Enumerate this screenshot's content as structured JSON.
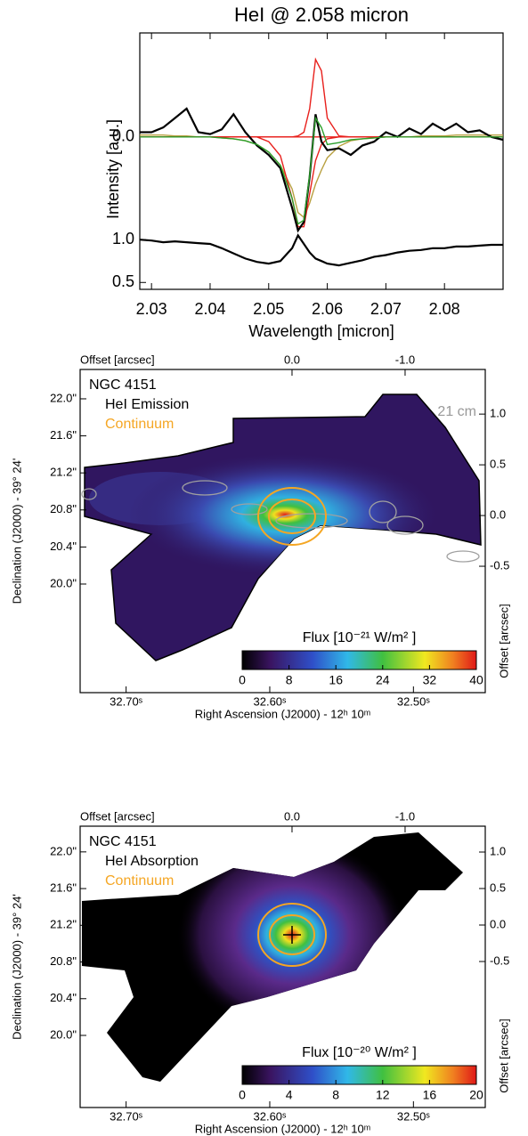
{
  "chart_data": [
    {
      "type": "line",
      "title": "HeI @ 2.058 micron",
      "xlabel": "Wavelength [micron]",
      "ylabel": "Intensity [a.u.]",
      "x": [
        2.028,
        2.03,
        2.032,
        2.034,
        2.036,
        2.038,
        2.04,
        2.042,
        2.044,
        2.046,
        2.048,
        2.05,
        2.052,
        2.054,
        2.055,
        2.056,
        2.057,
        2.058,
        2.059,
        2.06,
        2.062,
        2.064,
        2.066,
        2.068,
        2.07,
        2.072,
        2.074,
        2.076,
        2.078,
        2.08,
        2.082,
        2.084,
        2.086,
        2.088,
        2.09
      ],
      "xlim": [
        2.028,
        2.09
      ],
      "xticks": [
        2.03,
        2.04,
        2.05,
        2.06,
        2.07,
        2.08
      ],
      "ylim": [
        -1.0,
        1.1
      ],
      "yticks": [
        {
          "value": 0,
          "label": "0.0"
        }
      ],
      "series": [
        {
          "color": "#e8201c",
          "values": [
            0,
            0,
            0,
            0,
            0,
            0,
            0,
            0,
            0,
            0,
            0,
            0,
            0,
            0,
            0,
            0,
            0,
            0,
            0,
            0,
            0,
            0,
            0,
            0,
            0,
            0,
            0,
            0,
            0,
            0,
            0,
            0,
            0,
            0,
            0
          ]
        },
        {
          "color": "#b8a040",
          "values": [
            0.02,
            0.02,
            0.02,
            0.01,
            0.01,
            0,
            0,
            -0.01,
            -0.02,
            -0.04,
            -0.08,
            -0.16,
            -0.3,
            -0.55,
            -0.8,
            -0.85,
            -0.7,
            -0.5,
            -0.35,
            -0.22,
            -0.1,
            -0.04,
            -0.02,
            -0.01,
            0,
            0,
            0,
            0.01,
            0.01,
            0.01,
            0.02,
            0.02,
            0.02,
            0.02,
            0.02
          ]
        },
        {
          "color": "#e8201c",
          "values": [
            0,
            0,
            0,
            0,
            0,
            0,
            0,
            0,
            0,
            0,
            0,
            -0.05,
            -0.2,
            -0.65,
            -0.95,
            -0.95,
            -0.6,
            -0.25,
            -0.08,
            -0.02,
            0,
            0,
            0,
            0,
            0,
            0,
            0,
            0,
            0,
            0,
            0,
            0,
            0,
            0,
            0
          ]
        },
        {
          "color": "#e8201c",
          "values": [
            0,
            0,
            0,
            0,
            0,
            0,
            0,
            0,
            0,
            0,
            0,
            0,
            0,
            0,
            0.01,
            0.05,
            0.3,
            0.82,
            0.7,
            0.2,
            0.01,
            0,
            0,
            0,
            0,
            0,
            0,
            0,
            0,
            0,
            0,
            0,
            0,
            0,
            0
          ]
        },
        {
          "color": "#000000",
          "values": [
            0.05,
            0.05,
            0.1,
            0.2,
            0.3,
            0.05,
            0.03,
            0.08,
            0.24,
            0.05,
            -0.09,
            -0.19,
            -0.33,
            -0.75,
            -0.99,
            -0.9,
            -0.42,
            0.24,
            -0.05,
            -0.14,
            -0.12,
            -0.19,
            -0.09,
            -0.05,
            0.05,
            0,
            0.09,
            0.03,
            0.14,
            0.07,
            0.14,
            0.05,
            0.07,
            0,
            -0.03
          ]
        },
        {
          "color": "#2ca02c",
          "values": [
            0,
            0,
            0,
            0,
            0,
            0,
            0,
            -0.01,
            -0.02,
            -0.04,
            -0.08,
            -0.16,
            -0.3,
            -0.65,
            -0.92,
            -0.88,
            -0.4,
            0.2,
            0.1,
            -0.08,
            -0.06,
            -0.03,
            -0.02,
            -0.01,
            0,
            0,
            0,
            0,
            0,
            0,
            0,
            0,
            0,
            0,
            0
          ]
        }
      ]
    },
    {
      "type": "line",
      "x": [
        2.028,
        2.03,
        2.032,
        2.034,
        2.036,
        2.038,
        2.04,
        2.042,
        2.044,
        2.046,
        2.048,
        2.05,
        2.052,
        2.054,
        2.055,
        2.056,
        2.057,
        2.058,
        2.059,
        2.06,
        2.062,
        2.064,
        2.066,
        2.068,
        2.07,
        2.072,
        2.074,
        2.076,
        2.078,
        2.08,
        2.082,
        2.084,
        2.086,
        2.088,
        2.09
      ],
      "xlim": [
        2.028,
        2.09
      ],
      "ylim": [
        0.43,
        1.2
      ],
      "yticks": [
        {
          "value": 1,
          "label": "1.0"
        },
        0.5
      ],
      "series": [
        {
          "color": "#000000",
          "values": [
            1.0,
            0.99,
            0.97,
            0.98,
            0.97,
            0.96,
            0.95,
            0.9,
            0.84,
            0.78,
            0.74,
            0.72,
            0.75,
            0.9,
            1.05,
            0.95,
            0.85,
            0.78,
            0.75,
            0.72,
            0.7,
            0.73,
            0.76,
            0.8,
            0.82,
            0.85,
            0.87,
            0.88,
            0.9,
            0.9,
            0.92,
            0.92,
            0.93,
            0.94,
            0.94
          ]
        }
      ]
    },
    {
      "type": "image",
      "title": "NGC 4151",
      "labels": [
        {
          "text": "HeI Emission",
          "color": "#000000"
        },
        {
          "text": "Continuum",
          "color": "#f5a623"
        }
      ],
      "annotation": {
        "text": "21 cm",
        "color": "#999999"
      },
      "xlabel": "Right Ascension (J2000) - 12ʰ 10ᵐ",
      "ylabel": "Declination (J2000) - 39° 24'",
      "x2label": "Offset [arcsec]",
      "y2label": "Offset [arcsec]",
      "xlim": [
        32.732,
        32.45
      ],
      "xticks": [
        {
          "value": 32.7,
          "label": "32.70ˢ"
        },
        {
          "value": 32.6,
          "label": "32.60ˢ"
        },
        {
          "value": 32.5,
          "label": "32.50ˢ"
        }
      ],
      "x2lim": [
        1.874,
        -1.709
      ],
      "x2ticks": [
        {
          "value": 0,
          "label": "0.0"
        },
        {
          "value": -1,
          "label": "-1.0"
        }
      ],
      "ylim": [
        22.317,
        18.827
      ],
      "yticks": [
        {
          "value": 22,
          "label": "22.0\""
        },
        {
          "value": 21.6,
          "label": "21.6\""
        },
        {
          "value": 21.2,
          "label": "21.2\""
        },
        {
          "value": 20.8,
          "label": "20.8\""
        },
        {
          "value": 20.4,
          "label": "20.4\""
        },
        {
          "value": 20,
          "label": "20.0\""
        }
      ],
      "y2lim": [
        1.44,
        -1.746
      ],
      "y2ticks": [
        {
          "value": 1,
          "label": "1.0"
        },
        0.5,
        {
          "value": 0,
          "label": "0.0"
        },
        -0.5
      ],
      "colorbar": {
        "title": "Flux [10⁻²¹ W/m² ]",
        "lim": [
          0,
          40
        ],
        "ticks": [
          0,
          8,
          16,
          24,
          32,
          40
        ]
      }
    },
    {
      "type": "image",
      "title": "NGC 4151",
      "labels": [
        {
          "text": "HeI Absorption",
          "color": "#000000"
        },
        {
          "text": "Continuum",
          "color": "#f5a623"
        }
      ],
      "xlabel": "Right Ascension (J2000) - 12ʰ 10ᵐ",
      "ylabel": "Declination (J2000) - 39° 24'",
      "x2label": "Offset [arcsec]",
      "y2label": "Offset [arcsec]",
      "xlim": [
        32.732,
        32.45
      ],
      "xticks": [
        {
          "value": 32.7,
          "label": "32.70ˢ"
        },
        {
          "value": 32.6,
          "label": "32.60ˢ"
        },
        {
          "value": 32.5,
          "label": "32.50ˢ"
        }
      ],
      "x2lim": [
        1.874,
        -1.709
      ],
      "x2ticks": [
        {
          "value": 0,
          "label": "0.0"
        },
        {
          "value": -1,
          "label": "-1.0"
        }
      ],
      "ylim": [
        22.28,
        19.214
      ],
      "yticks": [
        {
          "value": 22,
          "label": "22.0\""
        },
        {
          "value": 21.6,
          "label": "21.6\""
        },
        {
          "value": 21.2,
          "label": "21.2\""
        },
        {
          "value": 20.8,
          "label": "20.8\""
        },
        {
          "value": 20.4,
          "label": "20.4\""
        },
        {
          "value": 20,
          "label": "20.0\""
        }
      ],
      "y2lim": [
        1.354,
        -2.5
      ],
      "y2ticks": [
        {
          "value": 1,
          "label": "1.0"
        },
        0.5,
        {
          "value": 0,
          "label": "0.0"
        },
        -0.5
      ],
      "colorbar": {
        "title": "Flux [10⁻²⁰ W/m² ]",
        "lim": [
          0,
          20
        ],
        "ticks": [
          0,
          4,
          8,
          12,
          16,
          20
        ]
      }
    }
  ]
}
